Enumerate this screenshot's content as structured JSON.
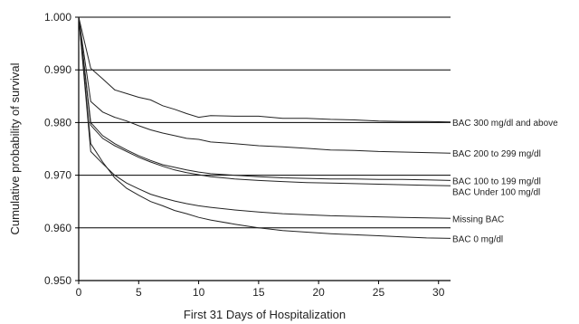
{
  "chart_data": {
    "type": "line",
    "xlabel": "First 31 Days of Hospitalization",
    "ylabel": "Cumulative probability of survival",
    "xlim": [
      0,
      31
    ],
    "ylim": [
      0.95,
      1.0
    ],
    "x_ticks": [
      0,
      5,
      10,
      15,
      20,
      25,
      30
    ],
    "y_ticks": [
      "0.950",
      "0.960",
      "0.970",
      "0.980",
      "0.990",
      "1.000"
    ],
    "grid": "horizontal",
    "series": [
      {
        "name": "BAC 300 mg/dl and above",
        "x": [
          0,
          1,
          2,
          3,
          4,
          5,
          6,
          7,
          8,
          9,
          10,
          11,
          13,
          15,
          17,
          19,
          21,
          23,
          25,
          27,
          29,
          31
        ],
        "y": [
          1.0,
          0.9903,
          0.9883,
          0.9862,
          0.9855,
          0.9848,
          0.9843,
          0.9832,
          0.9825,
          0.9817,
          0.981,
          0.9813,
          0.9812,
          0.9812,
          0.9808,
          0.9808,
          0.9806,
          0.9805,
          0.9803,
          0.9802,
          0.9802,
          0.9801
        ]
      },
      {
        "name": "BAC 200 to 299 mg/dl",
        "x": [
          0,
          1,
          2,
          3,
          4,
          5,
          6,
          7,
          8,
          9,
          10,
          11,
          13,
          15,
          17,
          19,
          21,
          23,
          25,
          27,
          29,
          31
        ],
        "y": [
          1.0,
          0.984,
          0.982,
          0.981,
          0.9803,
          0.9794,
          0.9786,
          0.978,
          0.9775,
          0.977,
          0.9768,
          0.9763,
          0.976,
          0.9756,
          0.9754,
          0.9751,
          0.9748,
          0.9747,
          0.9745,
          0.9744,
          0.9743,
          0.9742
        ]
      },
      {
        "name": "BAC 100 to 199 mg/dl",
        "x": [
          0,
          1,
          2,
          3,
          4,
          5,
          6,
          7,
          8,
          9,
          10,
          11,
          13,
          15,
          17,
          19,
          21,
          23,
          25,
          27,
          29,
          31
        ],
        "y": [
          1.0,
          0.98,
          0.9775,
          0.976,
          0.9748,
          0.9737,
          0.9728,
          0.972,
          0.9715,
          0.971,
          0.9706,
          0.9703,
          0.97,
          0.9697,
          0.9695,
          0.9694,
          0.9693,
          0.9693,
          0.9692,
          0.9692,
          0.9691,
          0.969
        ]
      },
      {
        "name": "BAC Under 100 mg/dl",
        "x": [
          0,
          1,
          2,
          3,
          4,
          5,
          6,
          7,
          8,
          9,
          10,
          11,
          13,
          15,
          17,
          19,
          21,
          23,
          25,
          27,
          29,
          31
        ],
        "y": [
          1.0,
          0.9795,
          0.977,
          0.9756,
          0.9745,
          0.9734,
          0.9725,
          0.9717,
          0.971,
          0.9705,
          0.9701,
          0.9697,
          0.9693,
          0.969,
          0.9688,
          0.9686,
          0.9685,
          0.9684,
          0.9683,
          0.9682,
          0.9681,
          0.968
        ]
      },
      {
        "name": "Missing BAC",
        "x": [
          0,
          1,
          2,
          3,
          4,
          5,
          6,
          7,
          8,
          9,
          10,
          11,
          13,
          15,
          17,
          19,
          21,
          23,
          25,
          27,
          29,
          31
        ],
        "y": [
          1.0,
          0.9745,
          0.9722,
          0.97,
          0.9685,
          0.9674,
          0.9664,
          0.9657,
          0.9651,
          0.9646,
          0.9642,
          0.9639,
          0.9634,
          0.963,
          0.9627,
          0.9625,
          0.9623,
          0.9622,
          0.9621,
          0.962,
          0.9619,
          0.9618
        ]
      },
      {
        "name": "BAC 0 mg/dl",
        "x": [
          0,
          1,
          2,
          3,
          4,
          5,
          6,
          7,
          8,
          9,
          10,
          11,
          13,
          15,
          17,
          19,
          21,
          23,
          25,
          27,
          29,
          31
        ],
        "y": [
          1.0,
          0.976,
          0.9725,
          0.9695,
          0.9675,
          0.9662,
          0.965,
          0.9642,
          0.9633,
          0.9627,
          0.962,
          0.9615,
          0.9607,
          0.96,
          0.9595,
          0.9592,
          0.9589,
          0.9587,
          0.9585,
          0.9583,
          0.9581,
          0.958
        ]
      }
    ]
  }
}
